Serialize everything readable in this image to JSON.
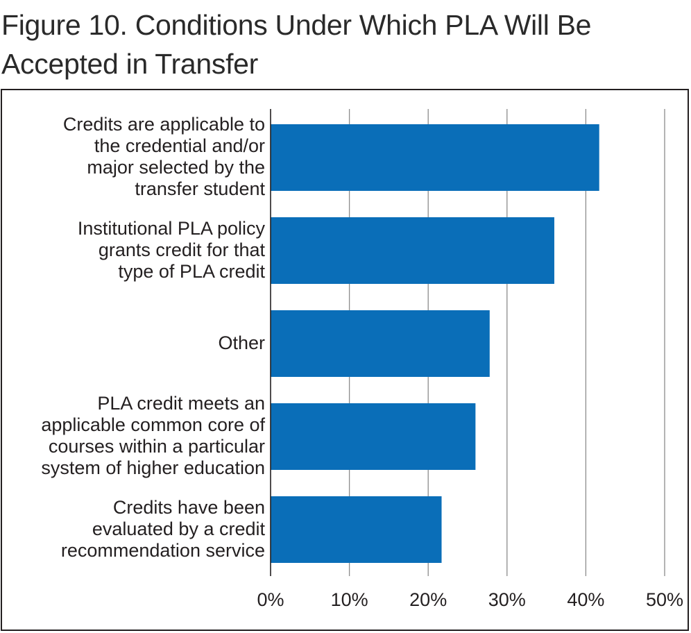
{
  "figure": {
    "title": "Figure 10. Conditions Under Which PLA Will Be Accepted in Transfer"
  },
  "colors": {
    "bar": "#0a6eb8",
    "gridline": "#8c8c8c",
    "axis": "#231f20",
    "frame": "#231f20"
  },
  "chart_data": {
    "type": "bar",
    "orientation": "horizontal",
    "title": "Figure 10. Conditions Under Which PLA Will Be Accepted in Transfer",
    "xlabel": "",
    "ylabel": "",
    "categories": [
      "Credits are applicable to the credential and/or major selected by the transfer student",
      "Institutional PLA policy grants credit for that type of PLA credit",
      "Other",
      "PLA credit meets an applicable common core of courses within a particular system of higher education",
      "Credits have been evaluated by a credit recommendation service"
    ],
    "category_lines": [
      "Credits are applicable to\nthe credential and/or\nmajor selected by the\ntransfer student",
      "Institutional PLA policy\ngrants credit for that\ntype of PLA credit",
      "Other",
      "PLA credit meets an\napplicable common core of\ncourses within a particular\nsystem of higher education",
      "Credits have been\nevaluated by a credit\nrecommendation service"
    ],
    "values": [
      41.7,
      36.0,
      27.8,
      26.0,
      21.7
    ],
    "unit": "%",
    "xlim": [
      0,
      50
    ],
    "ticks": [
      0,
      10,
      20,
      30,
      40,
      50
    ],
    "tick_labels": [
      "0%",
      "10%",
      "20%",
      "30%",
      "40%",
      "50%"
    ],
    "grid": true,
    "legend": "none"
  }
}
